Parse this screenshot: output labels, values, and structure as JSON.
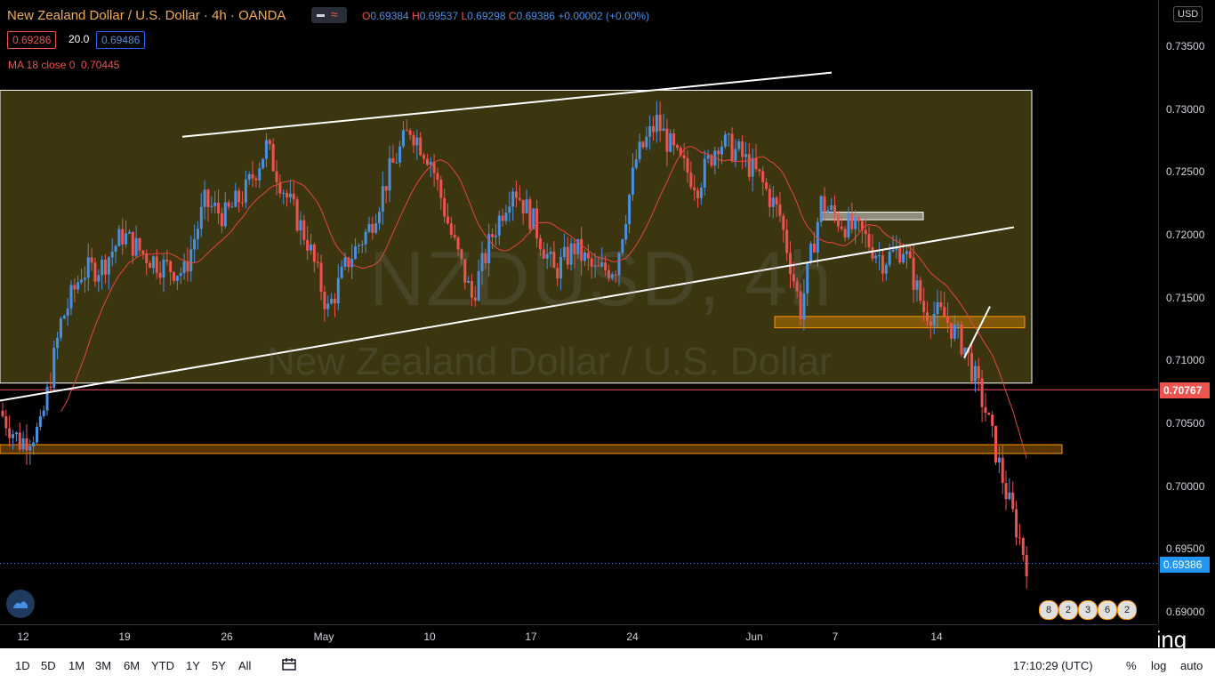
{
  "header": {
    "symbol_title": "New Zealand Dollar / U.S. Dollar · 4h · OANDA",
    "ohlc": {
      "o_label": "O",
      "o_value": "0.69384",
      "h_label": "H",
      "h_value": "0.69537",
      "l_label": "L",
      "l_value": "0.69298",
      "c_label": "C",
      "c_value": "0.69386",
      "change": "+0.00002 (+0.00%)"
    },
    "sell_price": "0.69286",
    "spread": "20.0",
    "buy_price": "0.69486",
    "indicator": "MA 18 close 0",
    "indicator_value": "0.70445",
    "currency": "USD"
  },
  "watermark": {
    "symbol": "NZDUSD, 4h",
    "description": "New Zealand Dollar / U.S. Dollar"
  },
  "price_axis": {
    "ticks": [
      "0.73500",
      "0.73000",
      "0.72500",
      "0.72000",
      "0.71500",
      "0.71000",
      "0.70500",
      "0.70000",
      "0.69500",
      "0.69000"
    ],
    "marker_red": "0.70767",
    "marker_blue": "0.69386"
  },
  "time_axis": {
    "ticks": [
      "12",
      "19",
      "26",
      "May",
      "10",
      "17",
      "24",
      "Jun",
      "7",
      "14"
    ]
  },
  "event_badges": [
    "8",
    "2",
    "3",
    "6",
    "2"
  ],
  "signature": "@Quetrading",
  "bottom_bar": {
    "ranges": [
      "1D",
      "5D",
      "1M",
      "3M",
      "6M",
      "YTD",
      "1Y",
      "5Y",
      "All"
    ],
    "time": "17:10:29 (UTC)",
    "percent": "%",
    "log": "log",
    "auto": "auto"
  },
  "colors": {
    "up": "#4a90e2",
    "down": "#ef5350",
    "ma": "#e8453c",
    "zone": "#3d3a12",
    "orange": "#ff9800"
  },
  "chart_data": {
    "type": "candlestick",
    "symbol": "NZDUSD",
    "interval": "4h",
    "ylim": [
      0.6885,
      0.7365
    ],
    "x_ticks": [
      "12",
      "19",
      "26",
      "May",
      "10",
      "17",
      "24",
      "Jun",
      "7",
      "14"
    ],
    "close_path": [
      [
        "Apr 12",
        0.706
      ],
      [
        "Apr 13",
        0.7035
      ],
      [
        "Apr 14",
        0.7045
      ],
      [
        "Apr 15",
        0.713
      ],
      [
        "Apr 16",
        0.717
      ],
      [
        "Apr 19",
        0.7175
      ],
      [
        "Apr 20",
        0.72
      ],
      [
        "Apr 21",
        0.7185
      ],
      [
        "Apr 22",
        0.7175
      ],
      [
        "Apr 23",
        0.717
      ],
      [
        "Apr 26",
        0.7225
      ],
      [
        "Apr 27",
        0.7215
      ],
      [
        "Apr 28",
        0.7235
      ],
      [
        "Apr 29",
        0.727
      ],
      [
        "Apr 30",
        0.723
      ],
      [
        "May 3",
        0.7195
      ],
      [
        "May 4",
        0.714
      ],
      [
        "May 5",
        0.718
      ],
      [
        "May 6",
        0.7205
      ],
      [
        "May 7",
        0.725
      ],
      [
        "May 10",
        0.7285
      ],
      [
        "May 11",
        0.726
      ],
      [
        "May 12",
        0.72
      ],
      [
        "May 13",
        0.715
      ],
      [
        "May 14",
        0.72
      ],
      [
        "May 17",
        0.724
      ],
      [
        "May 18",
        0.721
      ],
      [
        "May 19",
        0.717
      ],
      [
        "May 20",
        0.719
      ],
      [
        "May 21",
        0.717
      ],
      [
        "May 24",
        0.7175
      ],
      [
        "May 25",
        0.726
      ],
      [
        "May 26",
        0.729
      ],
      [
        "May 27",
        0.726
      ],
      [
        "May 28",
        0.724
      ],
      [
        "May 31",
        0.7275
      ],
      [
        "Jun 1",
        0.7265
      ],
      [
        "Jun 2",
        0.7245
      ],
      [
        "Jun 3",
        0.7215
      ],
      [
        "Jun 4",
        0.714
      ],
      [
        "Jun 7",
        0.7225
      ],
      [
        "Jun 8",
        0.721
      ],
      [
        "Jun 9",
        0.72
      ],
      [
        "Jun 10",
        0.718
      ],
      [
        "Jun 11",
        0.719
      ],
      [
        "Jun 14",
        0.714
      ],
      [
        "Jun 15",
        0.7135
      ],
      [
        "Jun 16",
        0.711
      ],
      [
        "Jun 17",
        0.706
      ],
      [
        "Jun 17b",
        0.6995
      ],
      [
        "Jun 18",
        0.6939
      ]
    ],
    "ma_period": 18,
    "ma_last": 0.70445,
    "last_close": 0.69386,
    "horizontal_line": 0.70767
  }
}
